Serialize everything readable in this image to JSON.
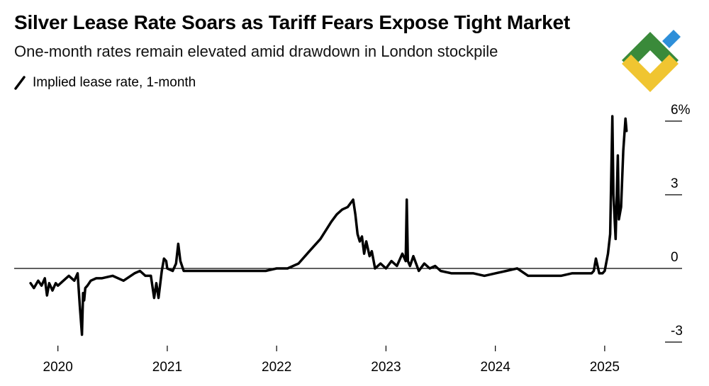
{
  "title": "Silver Lease Rate Soars as Tariff Fears Expose Tight Market",
  "subtitle": "One-month rates remain elevated amid drawdown in London stockpile",
  "legend_label": "Implied lease rate, 1-month",
  "colors": {
    "line": "#000000",
    "logo_green": "#3a8a3a",
    "logo_blue": "#2e8fd9",
    "logo_yellow": "#f0c531"
  },
  "chart_data": {
    "type": "line",
    "title": "Silver Lease Rate Soars as Tariff Fears Expose Tight Market",
    "xlabel": "",
    "ylabel": "",
    "ylim": [
      -3,
      6
    ],
    "xlim": [
      2019.6,
      2025.5
    ],
    "yticks": [
      {
        "value": 6,
        "label": "6%"
      },
      {
        "value": 3,
        "label": "3"
      },
      {
        "value": 0,
        "label": "0"
      },
      {
        "value": -3,
        "label": "-3"
      }
    ],
    "xticks": [
      {
        "value": 2020,
        "label": "2020"
      },
      {
        "value": 2021,
        "label": "2021"
      },
      {
        "value": 2022,
        "label": "2022"
      },
      {
        "value": 2023,
        "label": "2023"
      },
      {
        "value": 2024,
        "label": "2024"
      },
      {
        "value": 2025,
        "label": "2025"
      }
    ],
    "series": [
      {
        "name": "Implied lease rate, 1-month",
        "x": [
          2019.75,
          2019.78,
          2019.82,
          2019.85,
          2019.88,
          2019.9,
          2019.92,
          2019.95,
          2019.98,
          2020.0,
          2020.05,
          2020.1,
          2020.15,
          2020.18,
          2020.2,
          2020.22,
          2020.23,
          2020.24,
          2020.25,
          2020.27,
          2020.3,
          2020.35,
          2020.4,
          2020.5,
          2020.6,
          2020.7,
          2020.75,
          2020.8,
          2020.85,
          2020.88,
          2020.9,
          2020.92,
          2020.95,
          2020.97,
          2020.99,
          2021.0,
          2021.05,
          2021.08,
          2021.1,
          2021.12,
          2021.15,
          2021.2,
          2021.3,
          2021.5,
          2021.7,
          2021.8,
          2021.9,
          2022.0,
          2022.1,
          2022.2,
          2022.3,
          2022.4,
          2022.5,
          2022.55,
          2022.6,
          2022.65,
          2022.7,
          2022.72,
          2022.74,
          2022.76,
          2022.78,
          2022.8,
          2022.82,
          2022.85,
          2022.87,
          2022.9,
          2022.95,
          2023.0,
          2023.05,
          2023.1,
          2023.15,
          2023.18,
          2023.19,
          2023.2,
          2023.22,
          2023.25,
          2023.3,
          2023.35,
          2023.4,
          2023.45,
          2023.5,
          2023.6,
          2023.7,
          2023.8,
          2023.9,
          2024.0,
          2024.1,
          2024.2,
          2024.3,
          2024.4,
          2024.5,
          2024.6,
          2024.7,
          2024.8,
          2024.88,
          2024.9,
          2024.92,
          2024.95,
          2024.98,
          2025.0,
          2025.03,
          2025.05,
          2025.07,
          2025.08,
          2025.1,
          2025.12,
          2025.13,
          2025.15,
          2025.17,
          2025.19,
          2025.2
        ],
        "values": [
          -0.6,
          -0.8,
          -0.5,
          -0.7,
          -0.4,
          -1.1,
          -0.6,
          -0.9,
          -0.6,
          -0.7,
          -0.5,
          -0.3,
          -0.5,
          -0.2,
          -1.5,
          -2.7,
          -1.0,
          -1.3,
          -0.8,
          -0.7,
          -0.5,
          -0.4,
          -0.4,
          -0.3,
          -0.5,
          -0.2,
          -0.1,
          -0.3,
          -0.3,
          -1.2,
          -0.6,
          -1.2,
          -0.1,
          0.4,
          0.3,
          0.0,
          -0.1,
          0.2,
          1.0,
          0.3,
          -0.1,
          -0.1,
          -0.1,
          -0.1,
          -0.1,
          -0.1,
          -0.1,
          0.0,
          0.0,
          0.2,
          0.7,
          1.2,
          1.9,
          2.2,
          2.4,
          2.5,
          2.8,
          2.2,
          1.4,
          1.1,
          1.3,
          0.6,
          1.1,
          0.5,
          0.7,
          0.0,
          0.2,
          0.0,
          0.3,
          0.1,
          0.6,
          0.3,
          2.8,
          0.3,
          0.1,
          0.5,
          -0.1,
          0.2,
          0.0,
          0.1,
          -0.1,
          -0.2,
          -0.2,
          -0.2,
          -0.3,
          -0.2,
          -0.1,
          0.0,
          -0.3,
          -0.3,
          -0.3,
          -0.3,
          -0.2,
          -0.2,
          -0.2,
          -0.1,
          0.4,
          -0.2,
          -0.2,
          -0.1,
          0.6,
          1.4,
          6.2,
          3.0,
          1.2,
          4.6,
          2.0,
          2.5,
          4.8,
          6.1,
          5.6
        ]
      }
    ]
  }
}
